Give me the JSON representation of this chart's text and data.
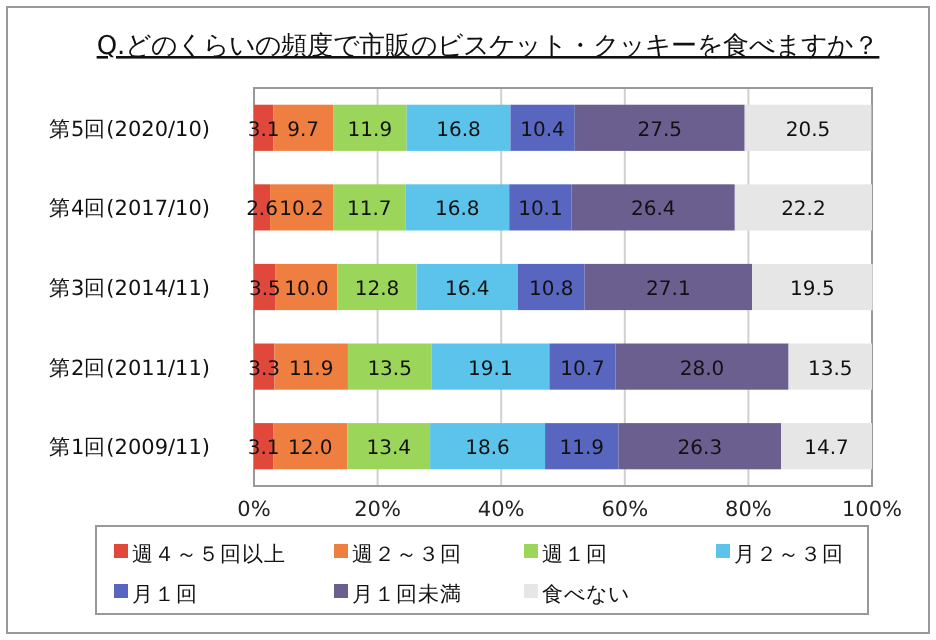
{
  "chart_data": {
    "type": "bar",
    "orientation": "horizontal",
    "stacked": true,
    "title": "Q.どのくらいの頻度で市販のビスケット・クッキーを食べますか？",
    "categories": [
      "第5回(2020/10)",
      "第4回(2017/10)",
      "第3回(2014/11)",
      "第2回(2011/11)",
      "第1回(2009/11)"
    ],
    "series": [
      {
        "name": "週４～５回以上",
        "color": "#e0483c",
        "values": [
          3.1,
          2.6,
          3.5,
          3.3,
          3.1
        ],
        "value_labels": [
          "3.1",
          "2.6",
          "3.5",
          "3.3",
          "3.1"
        ]
      },
      {
        "name": "週２～３回",
        "color": "#ee7f40",
        "values": [
          9.7,
          10.2,
          10.0,
          11.9,
          12.0
        ],
        "value_labels": [
          "9.7",
          "10.2",
          "10.0",
          "11.9",
          "12.0"
        ]
      },
      {
        "name": "週１回",
        "color": "#9bd65a",
        "values": [
          11.9,
          11.7,
          12.8,
          13.5,
          13.4
        ],
        "value_labels": [
          "11.9",
          "11.7",
          "12.8",
          "13.5",
          "13.4"
        ]
      },
      {
        "name": "月２～３回",
        "color": "#5cc3ea",
        "values": [
          16.8,
          16.8,
          16.4,
          19.1,
          18.6
        ],
        "value_labels": [
          "16.8",
          "16.8",
          "16.4",
          "19.1",
          "18.6"
        ]
      },
      {
        "name": "月１回",
        "color": "#5866c0",
        "values": [
          10.4,
          10.1,
          10.8,
          10.7,
          11.9
        ],
        "value_labels": [
          "10.4",
          "10.1",
          "10.8",
          "10.7",
          "11.9"
        ]
      },
      {
        "name": "月１回未満",
        "color": "#6a5f8e",
        "values": [
          27.5,
          26.4,
          27.1,
          28.0,
          26.3
        ],
        "value_labels": [
          "27.5",
          "26.4",
          "27.1",
          "28.0",
          "26.3"
        ]
      },
      {
        "name": "食べない",
        "color": "#e6e6e6",
        "values": [
          20.5,
          22.2,
          19.5,
          13.5,
          14.7
        ],
        "value_labels": [
          "20.5",
          "22.2",
          "19.5",
          "13.5",
          "14.7"
        ]
      }
    ],
    "xlim": [
      0,
      100
    ],
    "xticks": [
      {
        "value": 0,
        "label": "0%"
      },
      {
        "value": 20,
        "label": "20%"
      },
      {
        "value": 40,
        "label": "40%"
      },
      {
        "value": 60,
        "label": "60%"
      },
      {
        "value": 80,
        "label": "80%"
      },
      {
        "value": 100,
        "label": "100%"
      }
    ],
    "grid": "x",
    "legend": "bottom"
  }
}
